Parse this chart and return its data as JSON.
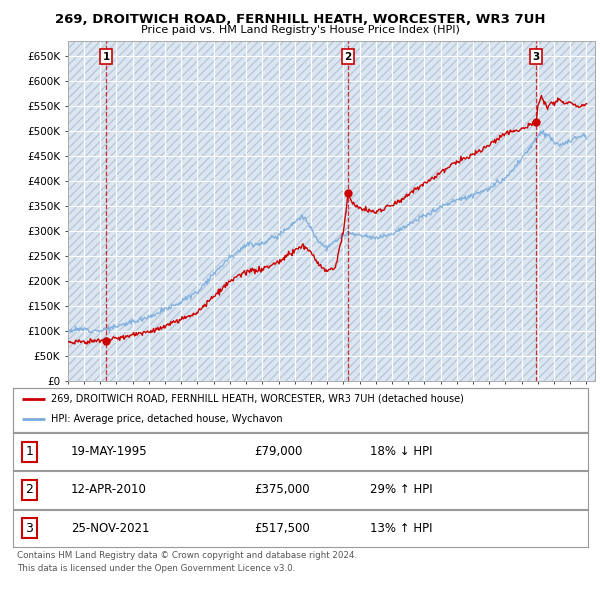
{
  "title": "269, DROITWICH ROAD, FERNHILL HEATH, WORCESTER, WR3 7UH",
  "subtitle": "Price paid vs. HM Land Registry's House Price Index (HPI)",
  "ylabel_ticks": [
    "£0",
    "£50K",
    "£100K",
    "£150K",
    "£200K",
    "£250K",
    "£300K",
    "£350K",
    "£400K",
    "£450K",
    "£500K",
    "£550K",
    "£600K",
    "£650K"
  ],
  "ylim": [
    0,
    680000
  ],
  "xlim_start": 1993.0,
  "xlim_end": 2025.5,
  "hpi_color": "#7aaddc",
  "price_color": "#cc0000",
  "sale_marker_color": "#cc0000",
  "vline_color": "#cc0000",
  "background_plot": "#dce6f1",
  "background_fig": "#ffffff",
  "grid_color": "#ffffff",
  "sales": [
    {
      "num": 1,
      "date": "19-MAY-1995",
      "price": 79000,
      "year": 1995.37,
      "hpi_pct": "18% ↓ HPI"
    },
    {
      "num": 2,
      "date": "12-APR-2010",
      "price": 375000,
      "year": 2010.28,
      "hpi_pct": "29% ↑ HPI"
    },
    {
      "num": 3,
      "date": "25-NOV-2021",
      "price": 517500,
      "year": 2021.9,
      "hpi_pct": "13% ↑ HPI"
    }
  ],
  "legend_line1": "269, DROITWICH ROAD, FERNHILL HEATH, WORCESTER, WR3 7UH (detached house)",
  "legend_line2": "HPI: Average price, detached house, Wychavon",
  "footer1": "Contains HM Land Registry data © Crown copyright and database right 2024.",
  "footer2": "This data is licensed under the Open Government Licence v3.0.",
  "hpi_base_points": [
    [
      1993.0,
      100000
    ],
    [
      1994.0,
      103000
    ],
    [
      1995.0,
      100000
    ],
    [
      1996.0,
      108000
    ],
    [
      1997.0,
      118000
    ],
    [
      1998.0,
      128000
    ],
    [
      1999.0,
      142000
    ],
    [
      2000.0,
      158000
    ],
    [
      2001.0,
      178000
    ],
    [
      2002.0,
      215000
    ],
    [
      2003.0,
      248000
    ],
    [
      2004.0,
      272000
    ],
    [
      2005.0,
      275000
    ],
    [
      2006.0,
      292000
    ],
    [
      2007.0,
      318000
    ],
    [
      2007.5,
      330000
    ],
    [
      2008.0,
      305000
    ],
    [
      2008.5,
      278000
    ],
    [
      2009.0,
      265000
    ],
    [
      2009.5,
      278000
    ],
    [
      2010.0,
      292000
    ],
    [
      2010.5,
      295000
    ],
    [
      2011.0,
      290000
    ],
    [
      2012.0,
      285000
    ],
    [
      2013.0,
      295000
    ],
    [
      2014.0,
      312000
    ],
    [
      2015.0,
      330000
    ],
    [
      2016.0,
      348000
    ],
    [
      2017.0,
      362000
    ],
    [
      2018.0,
      372000
    ],
    [
      2019.0,
      385000
    ],
    [
      2020.0,
      405000
    ],
    [
      2021.0,
      445000
    ],
    [
      2021.5,
      465000
    ],
    [
      2022.0,
      490000
    ],
    [
      2022.3,
      500000
    ],
    [
      2022.7,
      490000
    ],
    [
      2023.0,
      478000
    ],
    [
      2023.5,
      472000
    ],
    [
      2024.0,
      480000
    ],
    [
      2024.5,
      490000
    ],
    [
      2025.0,
      492000
    ]
  ],
  "prop_base_points": [
    [
      1993.0,
      78000
    ],
    [
      1994.0,
      78000
    ],
    [
      1995.0,
      79000
    ],
    [
      1995.37,
      79000
    ],
    [
      1996.0,
      84000
    ],
    [
      1997.0,
      91000
    ],
    [
      1998.0,
      98000
    ],
    [
      1999.0,
      108000
    ],
    [
      2000.0,
      122000
    ],
    [
      2001.0,
      138000
    ],
    [
      2002.0,
      168000
    ],
    [
      2003.0,
      198000
    ],
    [
      2004.0,
      218000
    ],
    [
      2005.0,
      222000
    ],
    [
      2006.0,
      238000
    ],
    [
      2007.0,
      260000
    ],
    [
      2007.5,
      272000
    ],
    [
      2008.0,
      255000
    ],
    [
      2008.5,
      232000
    ],
    [
      2009.0,
      218000
    ],
    [
      2009.5,
      228000
    ],
    [
      2010.0,
      298000
    ],
    [
      2010.28,
      375000
    ],
    [
      2010.5,
      358000
    ],
    [
      2011.0,
      345000
    ],
    [
      2012.0,
      338000
    ],
    [
      2013.0,
      352000
    ],
    [
      2014.0,
      372000
    ],
    [
      2015.0,
      395000
    ],
    [
      2016.0,
      418000
    ],
    [
      2017.0,
      438000
    ],
    [
      2018.0,
      452000
    ],
    [
      2019.0,
      472000
    ],
    [
      2020.0,
      495000
    ],
    [
      2021.0,
      505000
    ],
    [
      2021.5,
      512000
    ],
    [
      2021.9,
      517500
    ],
    [
      2022.0,
      548000
    ],
    [
      2022.2,
      572000
    ],
    [
      2022.4,
      558000
    ],
    [
      2022.6,
      545000
    ],
    [
      2022.8,
      560000
    ],
    [
      2023.0,
      555000
    ],
    [
      2023.3,
      568000
    ],
    [
      2023.6,
      555000
    ],
    [
      2024.0,
      558000
    ],
    [
      2024.5,
      548000
    ],
    [
      2025.0,
      552000
    ]
  ]
}
